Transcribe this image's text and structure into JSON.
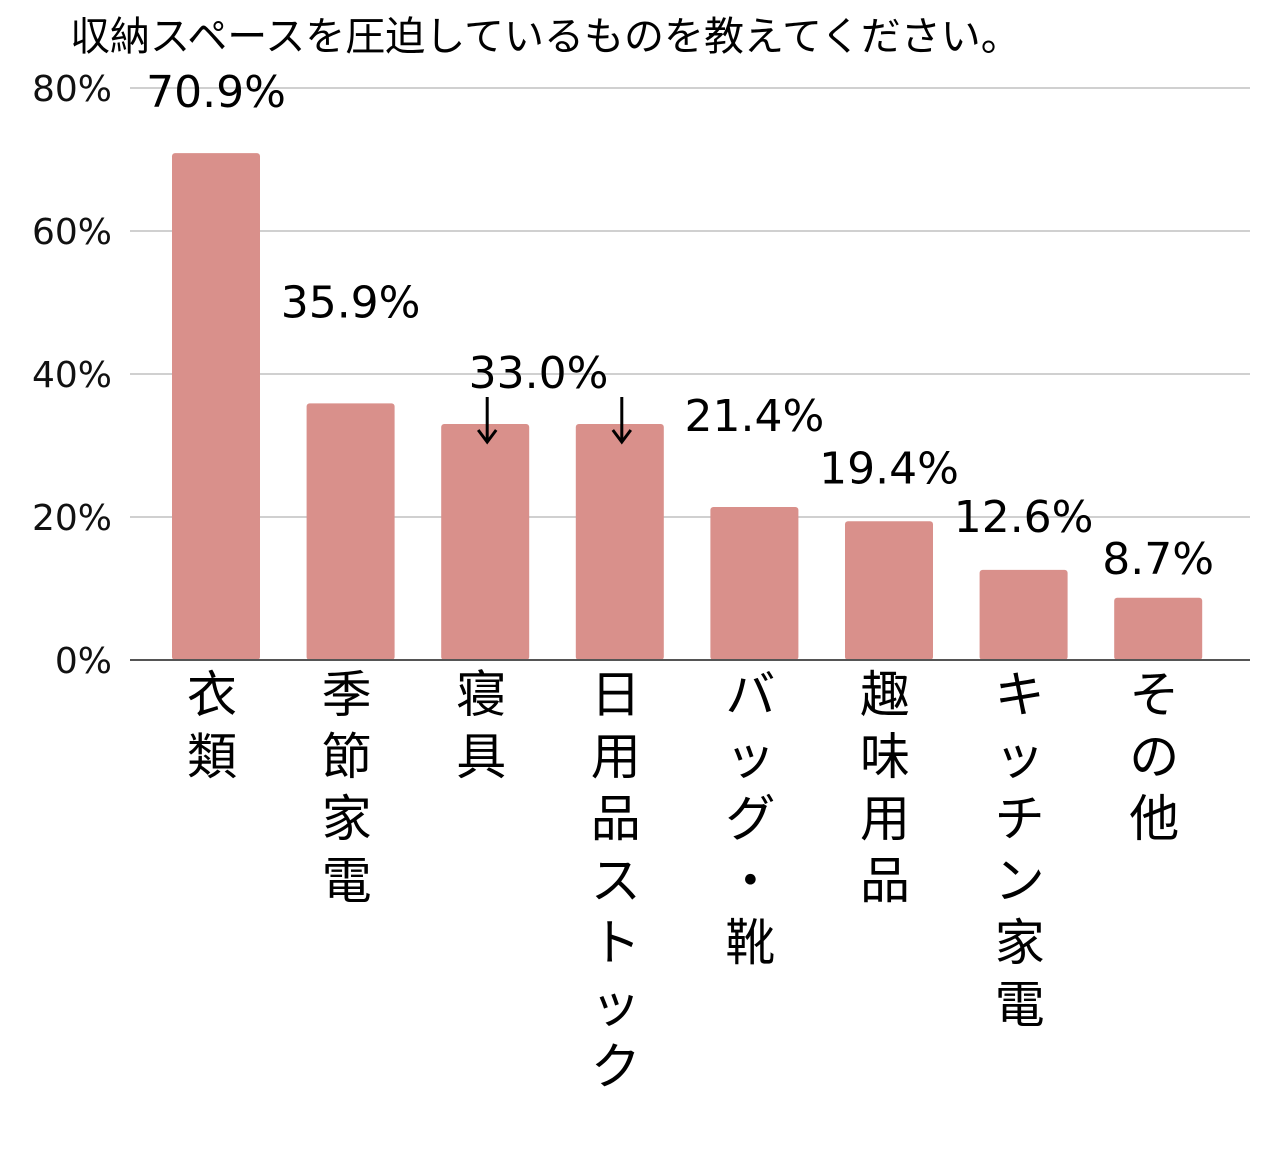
{
  "chart_data": {
    "type": "bar",
    "title": "収納スペースを圧迫しているものを教えてください。",
    "categories": [
      "衣類",
      "季節家電",
      "寝具",
      "日用品ストック",
      "バッグ・靴",
      "趣味用品",
      "キッチン家電",
      "その他"
    ],
    "values": [
      70.9,
      35.9,
      33.0,
      33.0,
      21.4,
      19.4,
      12.6,
      8.7
    ],
    "value_labels": [
      "70.9%",
      "35.9%",
      "33.0%",
      "",
      "21.4%",
      "19.4%",
      "12.6%",
      "8.7%"
    ],
    "ylim": [
      0,
      80
    ],
    "yticks": [
      0,
      20,
      40,
      60,
      80
    ],
    "ytick_labels": [
      "0%",
      "20%",
      "40%",
      "60%",
      "80%"
    ],
    "xlabel": "",
    "ylabel": "",
    "grid": true,
    "legend": "none",
    "bar_color": "#d9908b",
    "axis_color": "#555555",
    "grid_color": "#d0d0d0",
    "annotation": {
      "text": "33.0%",
      "applies_to": [
        "寝具",
        "日用品ストック"
      ],
      "arrow": "down"
    }
  }
}
